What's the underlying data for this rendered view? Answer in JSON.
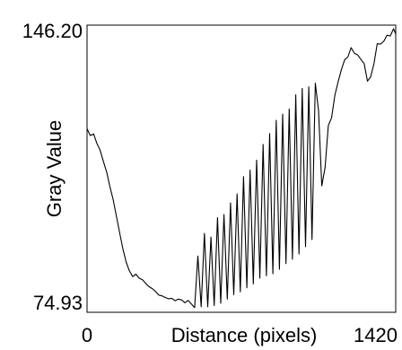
{
  "chart_data": {
    "type": "line",
    "title": "",
    "xlabel": "Distance (pixels)",
    "ylabel": "Gray Value",
    "xlim": [
      0,
      1420
    ],
    "ylim": [
      74.93,
      146.2
    ],
    "x_tick_labels": [
      "0",
      "1420"
    ],
    "y_tick_labels": [
      "146.20",
      "74.93"
    ],
    "line_color": "#000000",
    "grid": false,
    "series": [
      {
        "x": [
          0,
          15,
          30,
          45,
          60,
          75,
          90,
          105,
          120,
          135,
          150,
          165,
          180,
          195,
          210,
          225,
          240,
          255,
          270,
          285,
          300,
          315,
          330,
          345,
          360,
          375,
          390,
          405,
          420,
          435,
          450,
          465,
          480,
          495,
          510,
          525,
          540,
          555,
          570,
          585,
          600,
          615,
          630,
          645,
          660,
          675,
          690,
          705,
          720,
          735,
          750,
          765,
          780,
          795,
          810,
          825,
          840,
          855,
          870,
          885,
          900,
          915,
          930,
          945,
          960,
          975,
          990,
          1005,
          1020,
          1035,
          1050,
          1065,
          1080,
          1095,
          1110,
          1125,
          1140,
          1155,
          1170,
          1185,
          1200,
          1215,
          1230,
          1245,
          1260,
          1275,
          1290,
          1305,
          1320,
          1335,
          1350,
          1365,
          1380,
          1395,
          1410,
          1420
        ],
        "y": [
          120.5,
          118.8,
          119.2,
          116.9,
          115.2,
          112.4,
          109.8,
          106.2,
          102.9,
          98.8,
          94.7,
          90.6,
          87.4,
          85.2,
          83.8,
          84.4,
          83.4,
          83.0,
          82.1,
          81.3,
          80.8,
          80.1,
          79.2,
          79.0,
          78.6,
          78.3,
          78.4,
          77.8,
          78.2,
          78.0,
          77.3,
          77.9,
          77.0,
          76.1,
          88.9,
          76.3,
          94.5,
          76.3,
          93.6,
          76.6,
          98.4,
          77.2,
          99.2,
          78.2,
          102.1,
          79.3,
          104.3,
          80.0,
          108.6,
          81.0,
          110.2,
          82.0,
          112.7,
          83.4,
          116.6,
          84.0,
          119.3,
          84.5,
          122.6,
          85.6,
          124.1,
          87.0,
          125.4,
          88.1,
          128.9,
          89.4,
          130.5,
          91.2,
          130.9,
          93.0,
          131.8,
          125.0,
          106.3,
          110.9,
          121.3,
          123.2,
          128.8,
          132.1,
          135.1,
          137.6,
          138.3,
          140.6,
          139.2,
          138.8,
          137.7,
          136.6,
          132.3,
          133.4,
          136.7,
          141.6,
          141.5,
          142.2,
          143.7,
          143.5,
          145.3,
          144.0
        ]
      }
    ]
  }
}
